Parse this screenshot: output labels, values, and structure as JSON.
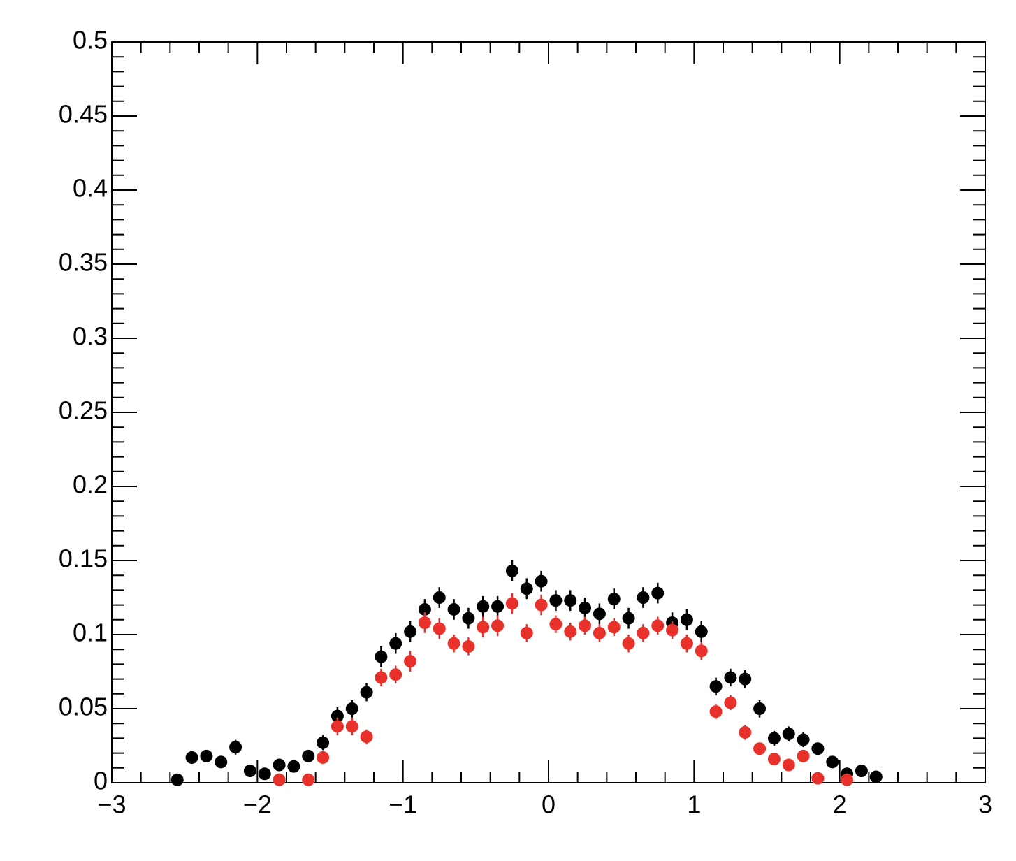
{
  "chart_data": {
    "type": "scatter",
    "xlim": [
      -3,
      3
    ],
    "xticks": [
      {
        "value": -3,
        "label": "−3"
      },
      {
        "value": -2,
        "label": "−2"
      },
      {
        "value": -1,
        "label": "−1"
      },
      0,
      1,
      2,
      3
    ],
    "ylim": [
      0,
      0.5
    ],
    "yticks": [
      0,
      0.05,
      0.1,
      0.15,
      0.2,
      0.25,
      0.3,
      0.35,
      0.4,
      0.45,
      0.5
    ],
    "series": [
      {
        "color": "#000000",
        "x": [
          -2.55,
          -2.45,
          -2.35,
          -2.25,
          -2.15,
          -2.05,
          -1.95,
          -1.85,
          -1.75,
          -1.65,
          -1.55,
          -1.45,
          -1.35,
          -1.25,
          -1.15,
          -1.05,
          -0.95,
          -0.85,
          -0.75,
          -0.65,
          -0.55,
          -0.45,
          -0.35,
          -0.25,
          -0.15,
          -0.05,
          0.05,
          0.15,
          0.25,
          0.35,
          0.45,
          0.55,
          0.65,
          0.75,
          0.85,
          0.95,
          1.05,
          1.15,
          1.25,
          1.35,
          1.45,
          1.55,
          1.65,
          1.75,
          1.85,
          1.95,
          2.05,
          2.15,
          2.25
        ],
        "values": [
          0.002,
          0.017,
          0.018,
          0.014,
          0.024,
          0.008,
          0.006,
          0.012,
          0.011,
          0.018,
          0.027,
          0.045,
          0.05,
          0.061,
          0.085,
          0.094,
          0.102,
          0.117,
          0.125,
          0.117,
          0.111,
          0.119,
          0.119,
          0.143,
          0.131,
          0.136,
          0.123,
          0.123,
          0.118,
          0.114,
          0.124,
          0.111,
          0.125,
          0.128,
          0.108,
          0.11,
          0.102,
          0.065,
          0.071,
          0.07,
          0.05,
          0.03,
          0.033,
          0.029,
          0.023,
          0.014,
          0.006,
          0.008,
          0.004
        ],
        "errors": [
          0.002,
          0.004,
          0.004,
          0.004,
          0.005,
          0.003,
          0.003,
          0.003,
          0.003,
          0.004,
          0.005,
          0.006,
          0.006,
          0.006,
          0.007,
          0.007,
          0.007,
          0.007,
          0.007,
          0.007,
          0.007,
          0.007,
          0.007,
          0.007,
          0.007,
          0.007,
          0.007,
          0.007,
          0.007,
          0.007,
          0.007,
          0.007,
          0.007,
          0.007,
          0.007,
          0.007,
          0.007,
          0.006,
          0.006,
          0.006,
          0.006,
          0.005,
          0.005,
          0.005,
          0.004,
          0.003,
          0.003,
          0.003,
          0.002
        ]
      },
      {
        "color": "#e8312a",
        "x": [
          -1.85,
          -1.65,
          -1.55,
          -1.45,
          -1.35,
          -1.25,
          -1.15,
          -1.05,
          -0.95,
          -0.85,
          -0.75,
          -0.65,
          -0.55,
          -0.45,
          -0.35,
          -0.25,
          -0.15,
          -0.05,
          0.05,
          0.15,
          0.25,
          0.35,
          0.45,
          0.55,
          0.65,
          0.75,
          0.85,
          0.95,
          1.05,
          1.15,
          1.25,
          1.35,
          1.45,
          1.55,
          1.65,
          1.75,
          1.85,
          2.05
        ],
        "values": [
          0.002,
          0.002,
          0.017,
          0.038,
          0.038,
          0.031,
          0.071,
          0.073,
          0.082,
          0.108,
          0.104,
          0.094,
          0.092,
          0.105,
          0.106,
          0.121,
          0.101,
          0.12,
          0.107,
          0.102,
          0.106,
          0.101,
          0.105,
          0.094,
          0.101,
          0.106,
          0.103,
          0.094,
          0.089,
          0.048,
          0.054,
          0.034,
          0.023,
          0.016,
          0.012,
          0.018,
          0.003,
          0.002
        ],
        "errors": [
          0.002,
          0.002,
          0.004,
          0.006,
          0.006,
          0.005,
          0.006,
          0.006,
          0.007,
          0.007,
          0.007,
          0.006,
          0.006,
          0.007,
          0.007,
          0.007,
          0.006,
          0.007,
          0.006,
          0.006,
          0.006,
          0.006,
          0.006,
          0.006,
          0.006,
          0.006,
          0.006,
          0.006,
          0.006,
          0.005,
          0.005,
          0.005,
          0.004,
          0.004,
          0.003,
          0.004,
          0.002,
          0.002
        ]
      }
    ]
  }
}
